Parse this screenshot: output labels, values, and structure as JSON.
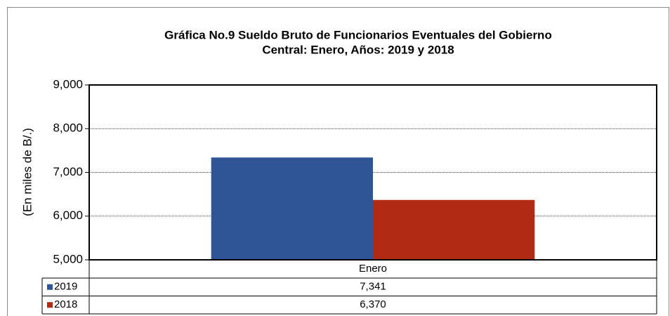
{
  "chart_data": {
    "type": "bar",
    "title": [
      "Gráfica No.9 Sueldo Bruto de Funcionarios Eventuales del  Gobierno",
      "Central: Enero, Años: 2019 y 2018"
    ],
    "y_label": "(En miles de B/.)",
    "categories": [
      "Enero"
    ],
    "series": [
      {
        "name": "2019",
        "color": "#2f5597",
        "values": [
          7341
        ],
        "value_labels": [
          "7,341"
        ]
      },
      {
        "name": "2018",
        "color": "#b02a14",
        "values": [
          6370
        ],
        "value_labels": [
          "6,370"
        ]
      }
    ],
    "ylim": [
      5000,
      9000
    ],
    "yticks": [
      {
        "value": 5000,
        "label": "5,000"
      },
      {
        "value": 6000,
        "label": "6,000"
      },
      {
        "value": 7000,
        "label": "7,000"
      },
      {
        "value": 8000,
        "label": "8,000"
      },
      {
        "value": 9000,
        "label": "9,000"
      }
    ],
    "grid": true
  }
}
